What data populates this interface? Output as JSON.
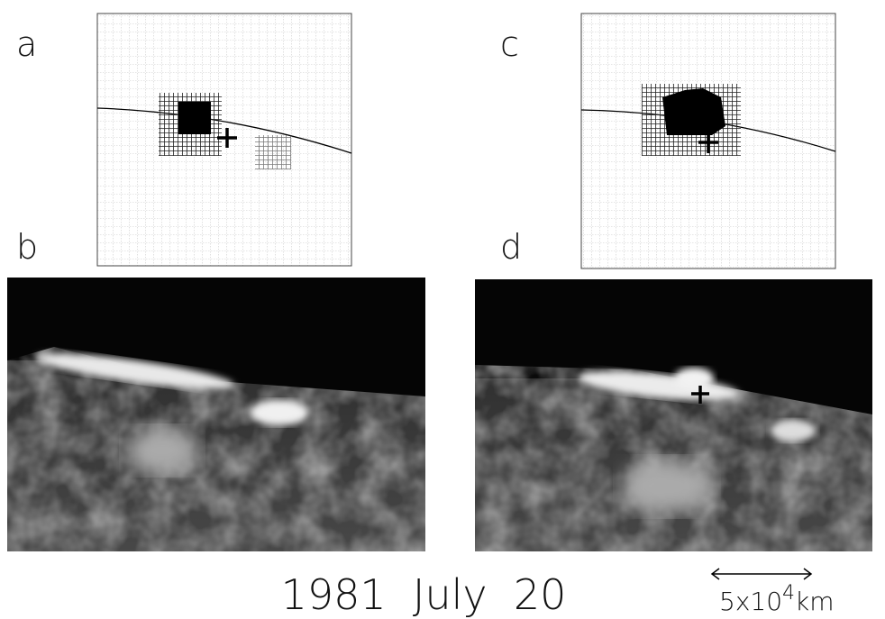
{
  "panels": {
    "a": "a",
    "b": "b",
    "c": "c",
    "d": "d"
  },
  "caption": "1981  July  20",
  "scale_bar": {
    "mantissa": "5x10",
    "exponent": "4",
    "unit": "km"
  }
}
